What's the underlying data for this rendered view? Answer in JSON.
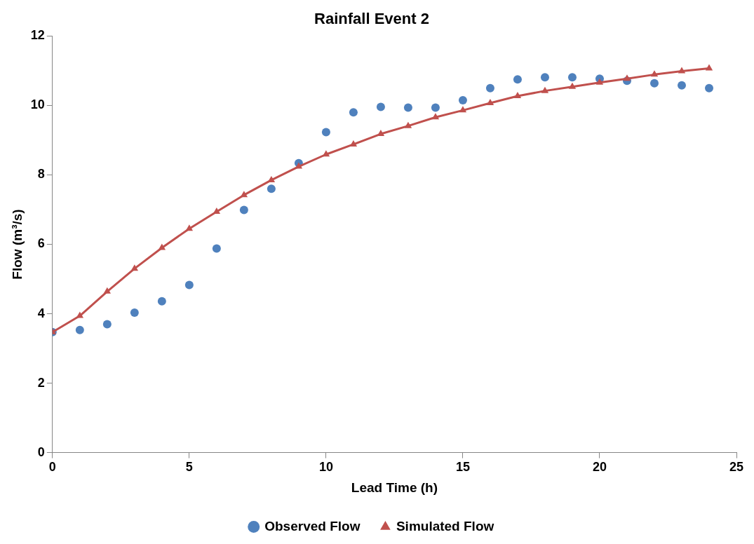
{
  "chart_data": {
    "type": "scatter",
    "title": "Rainfall Event 2",
    "xlabel": "Lead Time (h)",
    "ylabel": "Flow (m³/s)",
    "x": [
      0,
      1,
      2,
      3,
      4,
      5,
      6,
      7,
      8,
      9,
      10,
      11,
      12,
      13,
      14,
      15,
      16,
      17,
      18,
      19,
      20,
      21,
      22,
      23,
      24
    ],
    "series": [
      {
        "name": "Observed Flow",
        "type": "scatter",
        "marker": "circle",
        "color": "#4f81bd",
        "values": [
          3.47,
          3.53,
          3.7,
          4.03,
          4.36,
          4.83,
          5.88,
          6.99,
          7.6,
          8.34,
          9.23,
          9.8,
          9.96,
          9.94,
          9.94,
          10.15,
          10.5,
          10.75,
          10.81,
          10.81,
          10.77,
          10.71,
          10.64,
          10.58,
          10.5
        ]
      },
      {
        "name": "Simulated Flow",
        "type": "line",
        "marker": "triangle",
        "line_style": "solid",
        "color": "#c0504d",
        "values": [
          3.47,
          3.94,
          4.64,
          5.3,
          5.9,
          6.45,
          6.94,
          7.42,
          7.85,
          8.24,
          8.59,
          8.88,
          9.18,
          9.41,
          9.66,
          9.86,
          10.07,
          10.27,
          10.42,
          10.54,
          10.66,
          10.77,
          10.89,
          10.99,
          11.07
        ]
      }
    ],
    "xlim": [
      0,
      25
    ],
    "xticks": [
      0,
      5,
      10,
      15,
      20,
      25
    ],
    "ylim": [
      0,
      12
    ],
    "yticks": [
      0,
      2,
      4,
      6,
      8,
      10,
      12
    ],
    "grid": false,
    "legend": "bottom"
  }
}
